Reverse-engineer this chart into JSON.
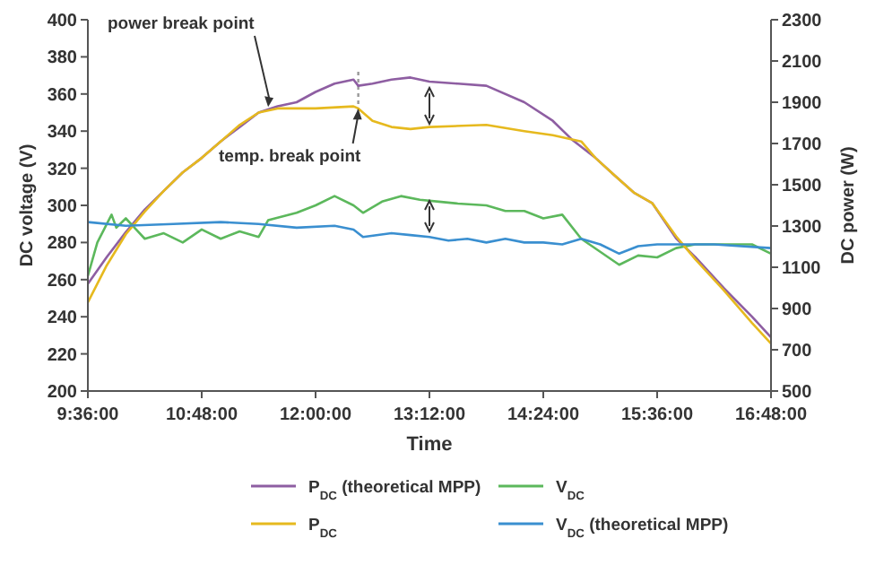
{
  "chart_data": {
    "type": "line",
    "xlabel": "Time",
    "ylabel": "DC voltage (V)",
    "y2label": "DC power (W)",
    "xlim": [
      9.6,
      16.8
    ],
    "xticks": [
      {
        "value": 9.6,
        "label": "9:36:00"
      },
      {
        "value": 10.8,
        "label": "10:48:00"
      },
      {
        "value": 12,
        "label": "12:00:00"
      },
      {
        "value": 13.2,
        "label": "13:12:00"
      },
      {
        "value": 14.4,
        "label": "14:24:00"
      },
      {
        "value": 15.6,
        "label": "15:36:00"
      },
      {
        "value": 16.8,
        "label": "16:48:00"
      }
    ],
    "ylim": [
      200,
      400
    ],
    "yticks": [
      200,
      220,
      240,
      260,
      280,
      300,
      320,
      340,
      360,
      380,
      400
    ],
    "y2lim": [
      500,
      2300
    ],
    "y2ticks": [
      500,
      700,
      900,
      1100,
      1300,
      1500,
      1700,
      1900,
      2100,
      2300
    ],
    "grid": false,
    "legend": "bottom",
    "marker": "none",
    "line_style": "solid",
    "ref_lines": [
      {
        "axis": "x",
        "value": 12.45,
        "color": "#999999",
        "line_style": "dotted"
      }
    ],
    "annotations": [
      {
        "text": "power break point",
        "x": 11.5,
        "y": 352
      },
      {
        "text": "temp. break point",
        "x": 12.45,
        "y": 353
      }
    ],
    "series": [
      {
        "name": "P$_{DC}$ (theoretical MPP)",
        "color": "#8e5ea2",
        "axis": "y2",
        "x": [
          9.6,
          9.8,
          10,
          10.2,
          10.4,
          10.6,
          10.8,
          11,
          11.2,
          11.4,
          11.6,
          11.8,
          12,
          12.2,
          12.4,
          12.45,
          12.6,
          12.8,
          13,
          13.2,
          13.5,
          13.8,
          14.2,
          14.5,
          14.7,
          14.95,
          15.14,
          15.36,
          15.55,
          15.8,
          16,
          16.3,
          16.6,
          16.8
        ],
        "values": [
          1020,
          1150,
          1270,
          1380,
          1470,
          1560,
          1630,
          1710,
          1780,
          1850,
          1880,
          1900,
          1950,
          1990,
          2010,
          1980,
          1990,
          2010,
          2020,
          2000,
          1990,
          1980,
          1900,
          1810,
          1720,
          1630,
          1550,
          1460,
          1410,
          1240,
          1150,
          1000,
          860,
          760
        ]
      },
      {
        "name": "V$_{DC}$",
        "color": "#5cb85c",
        "x": [
          9.6,
          9.7,
          9.8,
          9.85,
          9.9,
          10,
          10.2,
          10.4,
          10.6,
          10.8,
          11,
          11.2,
          11.4,
          11.5,
          11.8,
          12,
          12.2,
          12.4,
          12.5,
          12.7,
          12.9,
          13.1,
          13.3,
          13.5,
          13.8,
          14,
          14.2,
          14.4,
          14.6,
          14.8,
          15,
          15.2,
          15.4,
          15.6,
          15.8,
          16,
          16.3,
          16.6,
          16.8
        ],
        "values": [
          262,
          280,
          290,
          295,
          288,
          293,
          282,
          285,
          280,
          287,
          282,
          286,
          283,
          292,
          296,
          300,
          305,
          300,
          296,
          302,
          305,
          303,
          302,
          301,
          300,
          297,
          297,
          293,
          295,
          282,
          275,
          268,
          273,
          272,
          277,
          279,
          279,
          279,
          274
        ]
      },
      {
        "name": "P$_{DC}$",
        "color": "#e6b91e",
        "axis": "y2",
        "x": [
          9.6,
          9.8,
          10,
          10.2,
          10.4,
          10.6,
          10.8,
          11,
          11.2,
          11.4,
          11.6,
          12,
          12.4,
          12.45,
          12.6,
          12.8,
          13,
          13.2,
          13.8,
          14.2,
          14.5,
          14.8,
          14.95,
          15.14,
          15.36,
          15.55,
          15.8,
          16,
          16.3,
          16.6,
          16.8
        ],
        "values": [
          930,
          1110,
          1260,
          1370,
          1470,
          1560,
          1630,
          1710,
          1790,
          1850,
          1870,
          1870,
          1880,
          1870,
          1810,
          1780,
          1770,
          1780,
          1790,
          1760,
          1740,
          1710,
          1630,
          1550,
          1460,
          1410,
          1250,
          1140,
          990,
          830,
          730
        ]
      },
      {
        "name": "V$_{DC}$ (theoretical MPP)",
        "color": "#3a8fd0",
        "x": [
          9.6,
          10,
          10.5,
          11,
          11.4,
          11.8,
          12.2,
          12.4,
          12.5,
          12.8,
          13,
          13.2,
          13.4,
          13.6,
          13.8,
          14,
          14.2,
          14.4,
          14.6,
          14.8,
          15,
          15.2,
          15.4,
          15.6,
          15.8,
          16.2,
          16.8
        ],
        "values": [
          291,
          289,
          290,
          291,
          290,
          288,
          289,
          287,
          283,
          285,
          284,
          283,
          281,
          282,
          280,
          282,
          280,
          280,
          279,
          282,
          279,
          274,
          278,
          279,
          279,
          279,
          277
        ]
      }
    ]
  }
}
